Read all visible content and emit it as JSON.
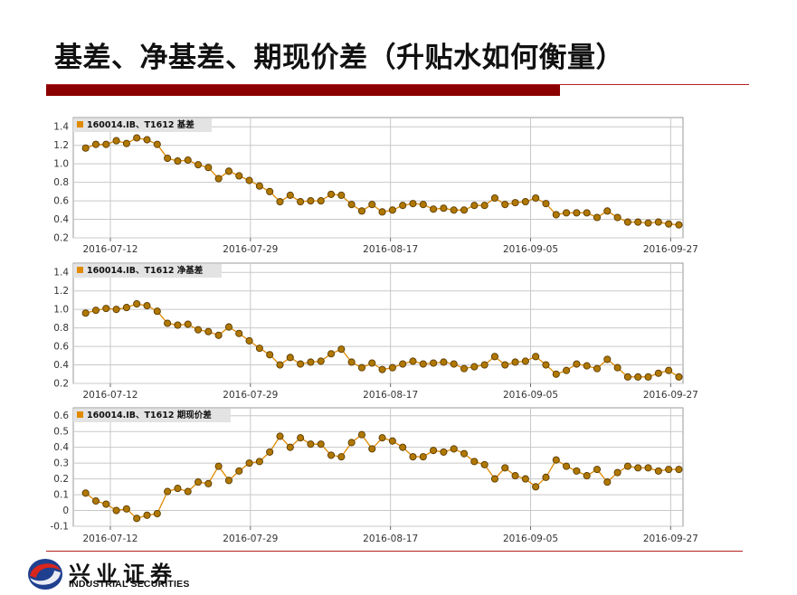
{
  "slide": {
    "title": "基差、净基差、期现价差（升贴水如何衡量）"
  },
  "logo": {
    "name_cn": "兴业证券",
    "name_en": "INDUSTRIAL SECURITIES"
  },
  "colors": {
    "title_bar": "#8b0000",
    "rule": "#b22222",
    "series_line": "#e08a00",
    "marker_fill": "#b07800",
    "marker_stroke": "#5a3a00",
    "legend_bg": "#e3e3e3"
  },
  "chart_data": [
    {
      "type": "line",
      "title": "",
      "legend": "160014.IB、T1612 基差",
      "legend_position": "top-left",
      "grid": true,
      "x_tick_labels": [
        "2016-07-12",
        "2016-07-29",
        "2016-08-17",
        "2016-09-05",
        "2016-09-27"
      ],
      "x_tick_index": [
        4,
        21,
        38,
        55,
        72
      ],
      "y_ticks": [
        0.2,
        0.4,
        0.6,
        0.8,
        1.0,
        1.2,
        1.4
      ],
      "y_tick_labels": [
        "0.2",
        "0.4",
        "0.6",
        "0.8",
        "1.0",
        "1.2",
        "1.4"
      ],
      "ylim": [
        0.2,
        1.5
      ],
      "series": [
        {
          "values": [
            1.17,
            1.21,
            1.21,
            1.25,
            1.22,
            1.28,
            1.26,
            1.21,
            1.06,
            1.03,
            1.04,
            0.99,
            0.96,
            0.84,
            0.92,
            0.87,
            0.82,
            0.76,
            0.7,
            0.59,
            0.66,
            0.59,
            0.6,
            0.6,
            0.67,
            0.66,
            0.56,
            0.49,
            0.56,
            0.48,
            0.5,
            0.55,
            0.57,
            0.56,
            0.51,
            0.52,
            0.5,
            0.5,
            0.55,
            0.55,
            0.63,
            0.56,
            0.58,
            0.59,
            0.63,
            0.57,
            0.45,
            0.47,
            0.47,
            0.47,
            0.42,
            0.49,
            0.42,
            0.37,
            0.37,
            0.36,
            0.37,
            0.35,
            0.34
          ]
        }
      ]
    },
    {
      "type": "line",
      "title": "",
      "legend": "160014.IB、T1612 净基差",
      "legend_position": "top-left",
      "grid": true,
      "x_tick_labels": [
        "2016-07-12",
        "2016-07-29",
        "2016-08-17",
        "2016-09-05",
        "2016-09-27"
      ],
      "x_tick_index": [
        4,
        21,
        38,
        55,
        72
      ],
      "y_ticks": [
        0.2,
        0.4,
        0.6,
        0.8,
        1.0,
        1.2,
        1.4
      ],
      "y_tick_labels": [
        "0.2",
        "0.4",
        "0.6",
        "0.8",
        "1.0",
        "1.2",
        "1.4"
      ],
      "ylim": [
        0.2,
        1.5
      ],
      "series": [
        {
          "values": [
            0.96,
            0.99,
            1.01,
            1.0,
            1.02,
            1.06,
            1.04,
            0.98,
            0.85,
            0.83,
            0.84,
            0.78,
            0.76,
            0.72,
            0.81,
            0.74,
            0.66,
            0.58,
            0.51,
            0.4,
            0.48,
            0.41,
            0.43,
            0.44,
            0.52,
            0.57,
            0.43,
            0.37,
            0.42,
            0.35,
            0.37,
            0.41,
            0.44,
            0.41,
            0.42,
            0.43,
            0.41,
            0.36,
            0.38,
            0.4,
            0.49,
            0.4,
            0.43,
            0.44,
            0.49,
            0.4,
            0.3,
            0.34,
            0.41,
            0.39,
            0.36,
            0.46,
            0.37,
            0.27,
            0.27,
            0.27,
            0.31,
            0.34,
            0.27
          ]
        }
      ]
    },
    {
      "type": "line",
      "title": "",
      "legend": "160014.IB、T1612 期现价差",
      "legend_position": "top-left",
      "grid": true,
      "x_tick_labels": [
        "2016-07-12",
        "2016-07-29",
        "2016-08-17",
        "2016-09-05",
        "2016-09-27"
      ],
      "x_tick_index": [
        4,
        21,
        38,
        55,
        72
      ],
      "y_ticks": [
        -0.1,
        0,
        0.1,
        0.2,
        0.3,
        0.4,
        0.5,
        0.6
      ],
      "y_tick_labels": [
        "-0.1",
        "0",
        "0.1",
        "0.2",
        "0.3",
        "0.4",
        "0.5",
        "0.6"
      ],
      "ylim": [
        -0.1,
        0.65
      ],
      "series": [
        {
          "values": [
            0.11,
            0.06,
            0.04,
            0.0,
            0.01,
            -0.05,
            -0.03,
            -0.02,
            0.12,
            0.14,
            0.12,
            0.18,
            0.17,
            0.28,
            0.19,
            0.25,
            0.3,
            0.31,
            0.37,
            0.47,
            0.4,
            0.46,
            0.42,
            0.42,
            0.35,
            0.34,
            0.43,
            0.48,
            0.39,
            0.46,
            0.44,
            0.4,
            0.34,
            0.34,
            0.38,
            0.37,
            0.39,
            0.36,
            0.31,
            0.29,
            0.2,
            0.27,
            0.22,
            0.2,
            0.15,
            0.21,
            0.32,
            0.28,
            0.25,
            0.22,
            0.26,
            0.18,
            0.24,
            0.28,
            0.27,
            0.27,
            0.25,
            0.26,
            0.26
          ]
        }
      ]
    }
  ]
}
